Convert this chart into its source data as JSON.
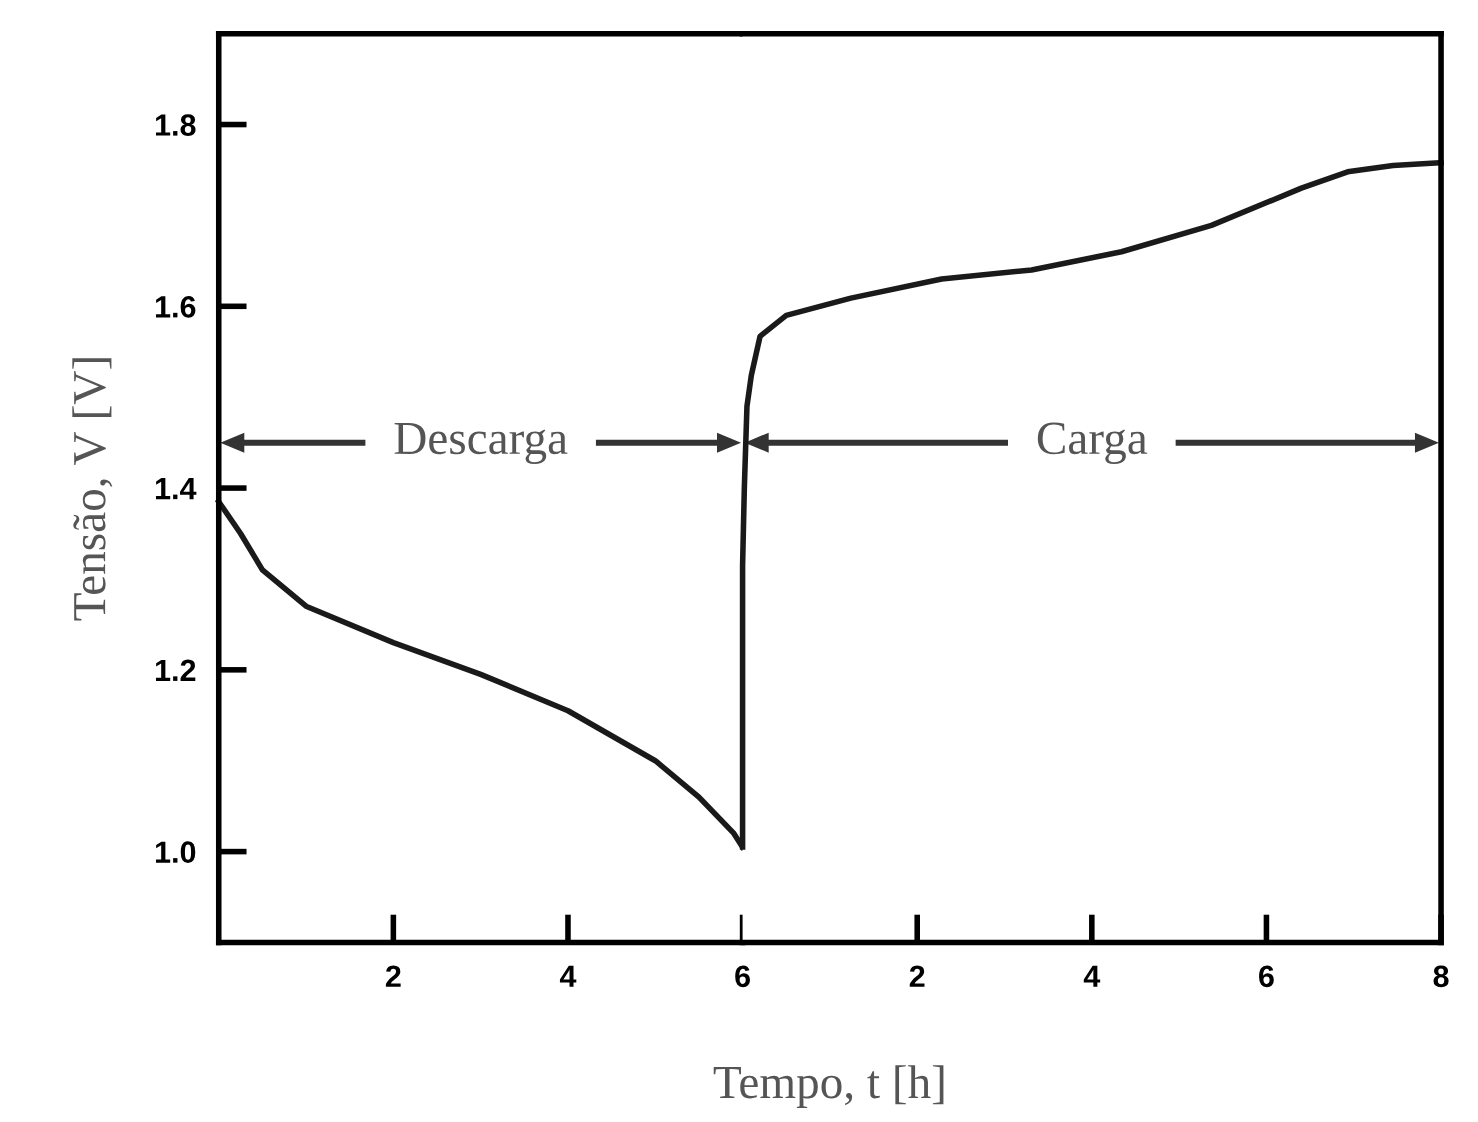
{
  "chart_data": [
    {
      "type": "line",
      "ylabel": "Tensão, V [V]",
      "xlim": [
        0,
        6
      ],
      "ylim": [
        0.9,
        1.9
      ],
      "xticks": [
        2,
        4,
        6
      ],
      "yticks": [
        {
          "value": 1.0,
          "label": "1.0"
        },
        1.2,
        1.4,
        1.6,
        1.8
      ],
      "grid": false,
      "marker": "none",
      "line_style": "solid",
      "annotations": [
        "Descarga"
      ],
      "series": [
        {
          "color": "#1a1a1a",
          "x": [
            0,
            0.25,
            0.5,
            1,
            2,
            3,
            4,
            5,
            5.5,
            5.9,
            6.0
          ],
          "values": [
            1.385,
            1.35,
            1.31,
            1.27,
            1.23,
            1.195,
            1.155,
            1.1,
            1.06,
            1.02,
            1.005
          ]
        }
      ]
    },
    {
      "type": "line",
      "xlabel": "Tempo, t [h]",
      "xlim": [
        0,
        8
      ],
      "ylim": [
        0.9,
        1.9
      ],
      "xticks": [
        2,
        4,
        6,
        8
      ],
      "tick_labels": "x",
      "grid": false,
      "marker": "none",
      "line_style": "solid",
      "annotations": [
        "Carga"
      ],
      "series": [
        {
          "color": "#1a1a1a",
          "x": [
            0,
            0,
            0.02,
            0.05,
            0.1,
            0.2,
            0.5,
            1.24,
            2.28,
            3.31,
            4.34,
            5.37,
            6.4,
            6.93,
            7.45,
            8
          ],
          "values": [
            1.005,
            1.315,
            1.4,
            1.49,
            1.524,
            1.567,
            1.59,
            1.609,
            1.63,
            1.64,
            1.66,
            1.689,
            1.73,
            1.748,
            1.755,
            1.758
          ]
        }
      ]
    }
  ]
}
